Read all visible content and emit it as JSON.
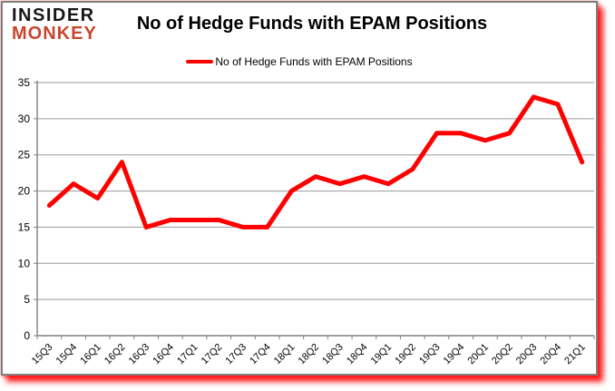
{
  "branding": {
    "logo_line1": "INSIDER",
    "logo_line2": "MONKEY",
    "logo_color1": "#161616",
    "logo_color2": "#c7472e"
  },
  "header": {
    "title": "No of Hedge Funds with EPAM Positions"
  },
  "legend": {
    "label": "No of Hedge Funds with EPAM Positions",
    "swatch_color": "#ff0000"
  },
  "chart_data": {
    "type": "line",
    "title": "No of Hedge Funds with EPAM Positions",
    "categories": [
      "15Q3",
      "15Q4",
      "16Q1",
      "16Q2",
      "16Q3",
      "16Q4",
      "17Q1",
      "17Q2",
      "17Q3",
      "17Q4",
      "18Q1",
      "18Q2",
      "18Q3",
      "18Q4",
      "19Q1",
      "19Q2",
      "19Q3",
      "19Q4",
      "20Q1",
      "20Q2",
      "20Q3",
      "20Q4",
      "21Q1"
    ],
    "series": [
      {
        "name": "No of Hedge Funds with EPAM Positions",
        "color": "#ff0000",
        "values": [
          18,
          21,
          19,
          24,
          15,
          16,
          16,
          16,
          15,
          15,
          20,
          22,
          21,
          22,
          21,
          23,
          28,
          28,
          27,
          28,
          33,
          32,
          24
        ]
      }
    ],
    "y_ticks": [
      0,
      5,
      10,
      15,
      20,
      25,
      30,
      35
    ],
    "ylim": [
      0,
      35
    ],
    "xlabel": "",
    "ylabel": "",
    "grid": true,
    "legend_position": "top"
  },
  "colors": {
    "gridline": "#9a9a9a",
    "axis": "#808080",
    "tick_text": "#000000",
    "panel_border": "#7f7f7f",
    "shadow": "#ff0000"
  }
}
